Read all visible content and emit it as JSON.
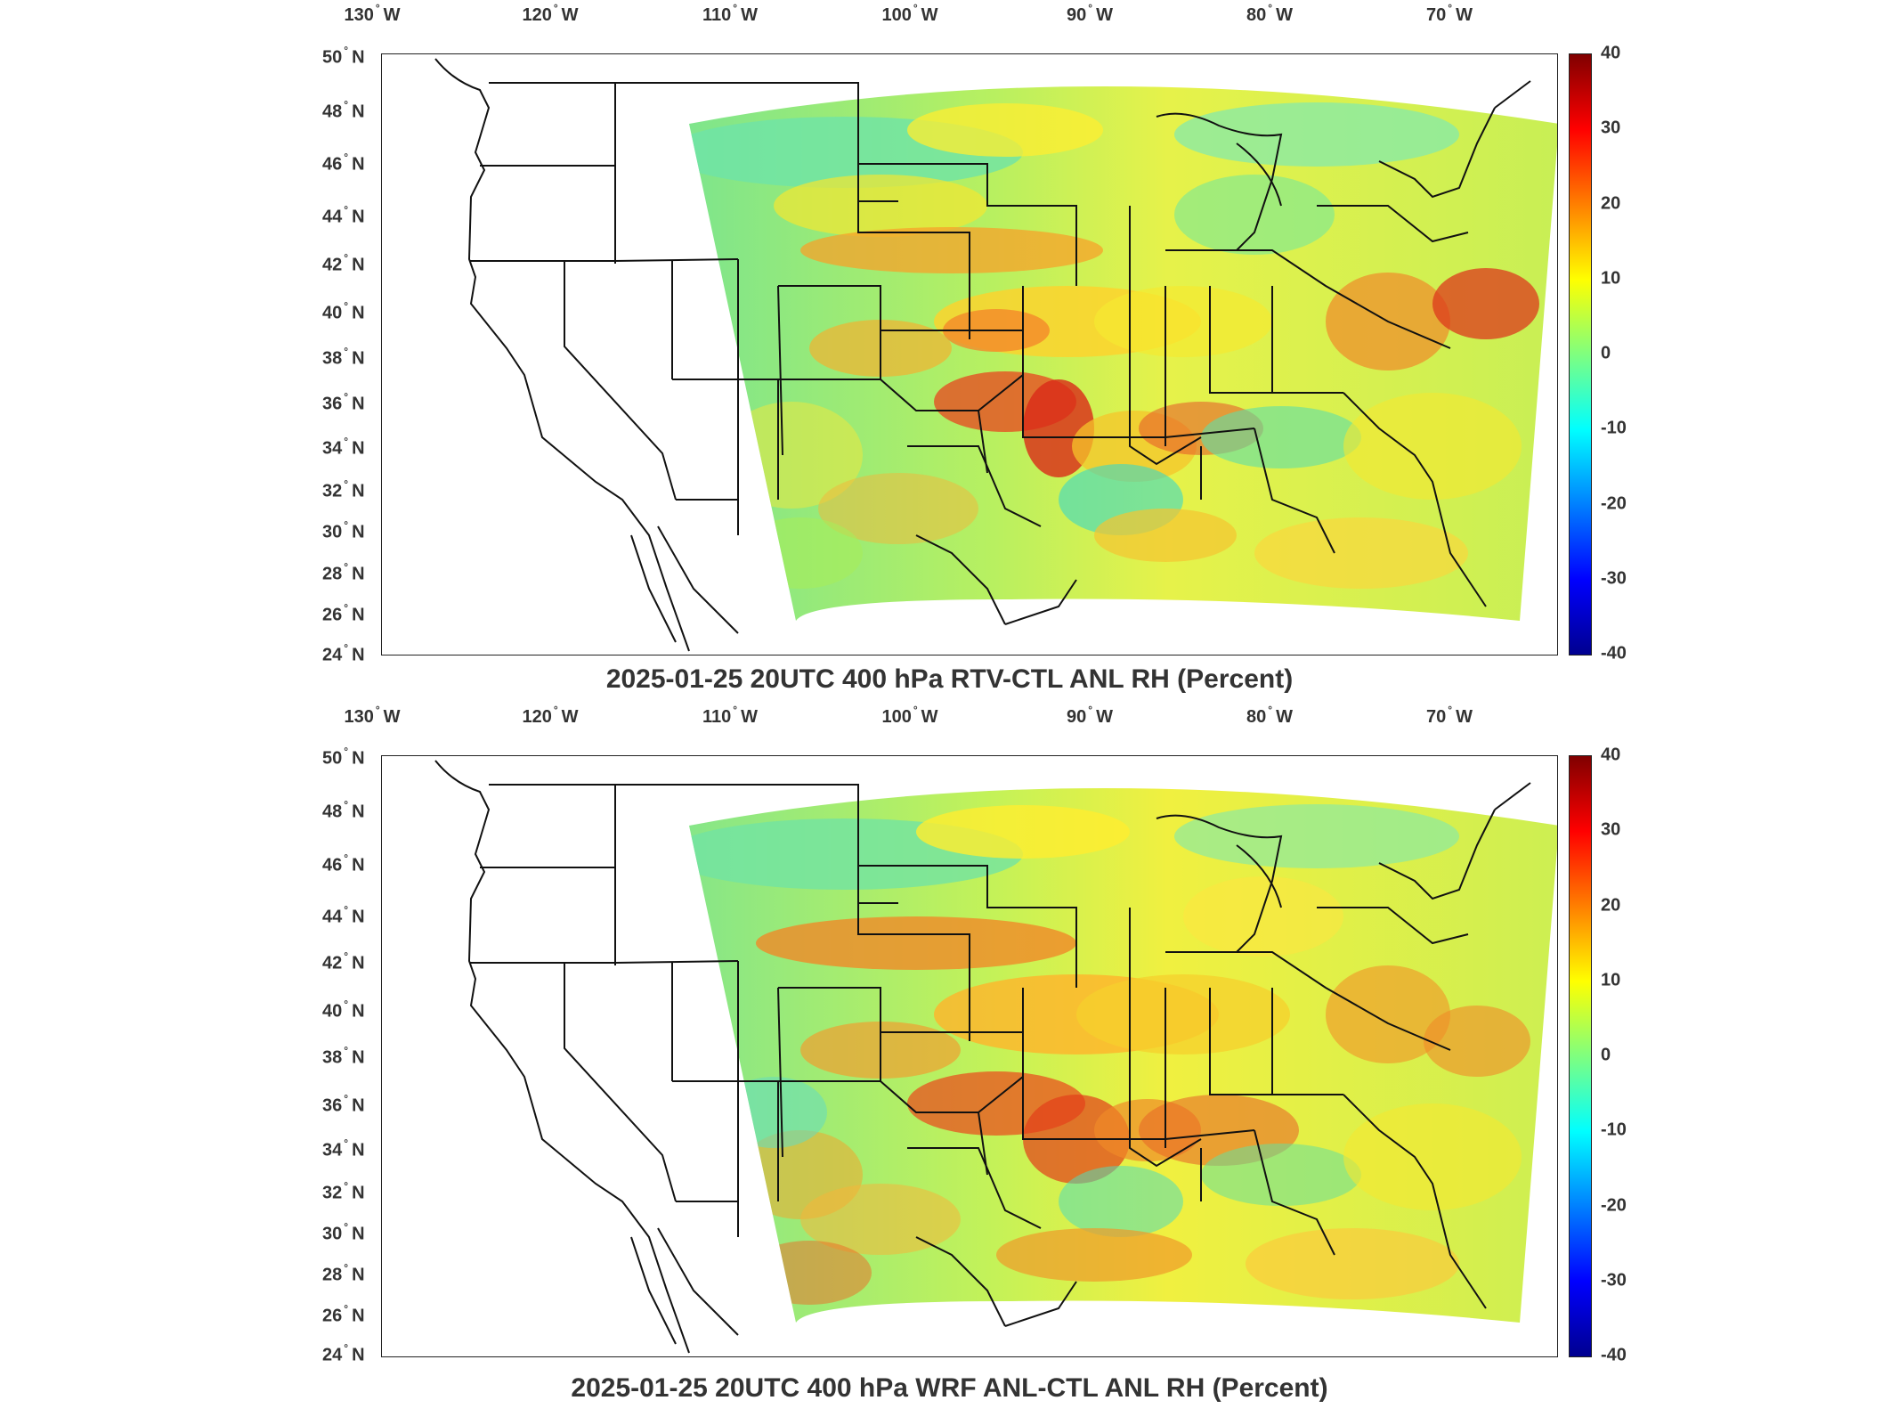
{
  "panels": [
    {
      "title": "2025-01-25 20UTC 400 hPa RTV-CTL ANL RH (Percent)",
      "lon_labels": [
        "130",
        "120",
        "110",
        "100",
        "90",
        "80",
        "70"
      ],
      "lat_labels": [
        "50",
        "48",
        "46",
        "44",
        "42",
        "40",
        "38",
        "36",
        "34",
        "32",
        "30",
        "28",
        "26",
        "24"
      ],
      "colorbar_ticks": [
        "40",
        "30",
        "20",
        "10",
        "0",
        "-10",
        "-20",
        "-30",
        "-40"
      ]
    },
    {
      "title": "2025-01-25 20UTC 400 hPa WRF ANL-CTL ANL RH (Percent)",
      "lon_labels": [
        "130",
        "120",
        "110",
        "100",
        "90",
        "80",
        "70"
      ],
      "lat_labels": [
        "50",
        "48",
        "46",
        "44",
        "42",
        "40",
        "38",
        "36",
        "34",
        "32",
        "30",
        "28",
        "26",
        "24"
      ],
      "colorbar_ticks": [
        "40",
        "30",
        "20",
        "10",
        "0",
        "-10",
        "-20",
        "-30",
        "-40"
      ]
    }
  ],
  "lon_hemisphere": "W",
  "lat_hemisphere": "N",
  "degree_symbol": "°",
  "colormap": {
    "name": "jet",
    "range": [
      -40,
      40
    ],
    "colors": [
      "#00008f",
      "#0000ff",
      "#0080ff",
      "#00ffff",
      "#7fff7f",
      "#ffff00",
      "#ff7f00",
      "#ff0000",
      "#800000"
    ]
  },
  "map": {
    "projection": "lambert-conformal-domain",
    "lon_range": [
      -130,
      -66
    ],
    "lat_range": [
      24,
      50
    ]
  }
}
